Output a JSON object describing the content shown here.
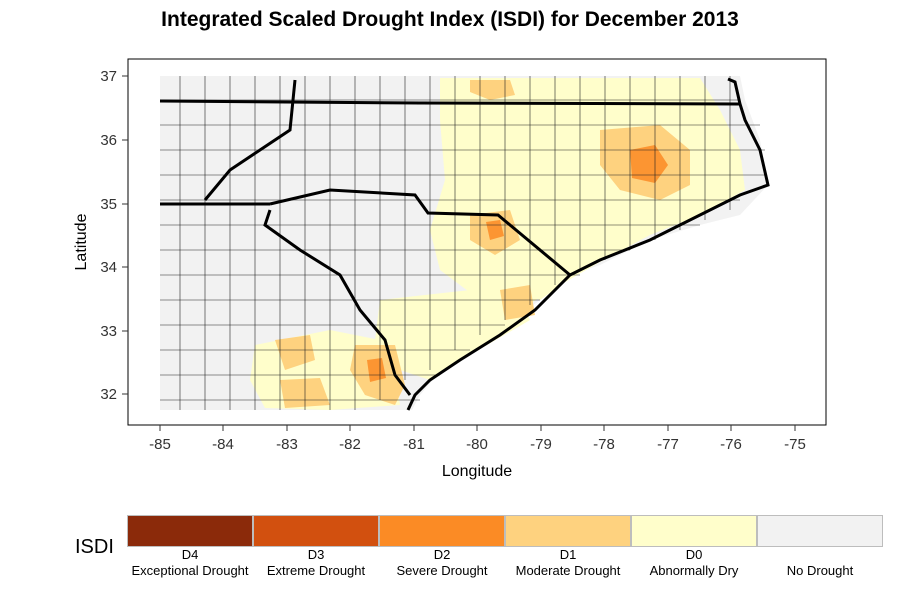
{
  "title": "Integrated Scaled Drought Index (ISDI) for December 2013",
  "axes": {
    "xlabel": "Longitude",
    "ylabel": "Latitude",
    "xticks": [
      "-85",
      "-84",
      "-83",
      "-82",
      "-81",
      "-80",
      "-79",
      "-78",
      "-77",
      "-76",
      "-75"
    ],
    "yticks": [
      "37",
      "36",
      "35",
      "34",
      "33",
      "32"
    ]
  },
  "legend": {
    "title": "ISDI",
    "items": [
      {
        "code": "D4",
        "label": "Exceptional Drought",
        "color": "#8b2a0a"
      },
      {
        "code": "D3",
        "label": "Extreme Drought",
        "color": "#d2500f"
      },
      {
        "code": "D2",
        "label": "Severe Drought",
        "color": "#fb8b25"
      },
      {
        "code": "D1",
        "label": "Moderate Drought",
        "color": "#fed27f"
      },
      {
        "code": "D0",
        "label": "Abnormally Dry",
        "color": "#fffecb"
      },
      {
        "code": "",
        "label": "No Drought",
        "color": "#f2f2f2"
      }
    ]
  },
  "chart_data": {
    "type": "heatmap",
    "title": "Integrated Scaled Drought Index (ISDI) for December 2013",
    "xlabel": "Longitude",
    "ylabel": "Latitude",
    "xlim": [
      -85.5,
      -74.5
    ],
    "ylim": [
      31.5,
      37.2
    ],
    "regions_approx": [
      {
        "area": "northern/central North Carolina border region",
        "category": "D0"
      },
      {
        "area": "north-central North Carolina around lon -79.3",
        "category": "D1"
      },
      {
        "area": "eastern North Carolina around lon -77.3, lat 35.5",
        "category": "D2"
      },
      {
        "area": "south-central North Carolina around lon -80, lat 34.6",
        "category": "D1"
      },
      {
        "area": "coastal South Carolina around lon -79",
        "category": "D0"
      },
      {
        "area": "southern Georgia/South Carolina border around lon -81.5, lat 32.3",
        "category": "D1"
      },
      {
        "area": "western and central interior",
        "category": "No Drought"
      }
    ]
  }
}
